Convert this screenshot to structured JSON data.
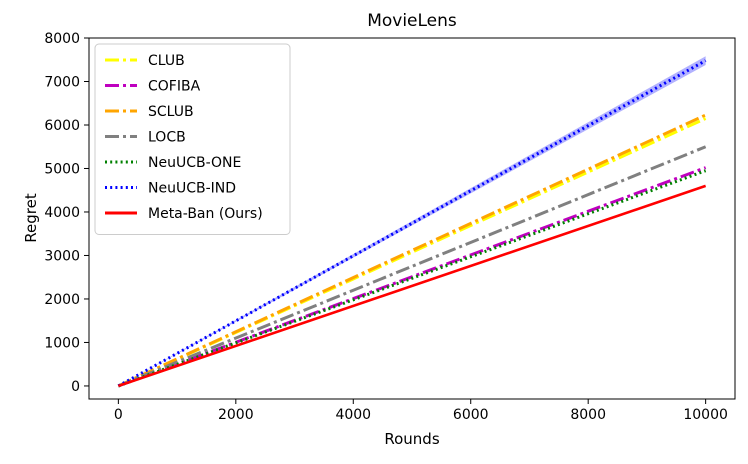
{
  "chart_data": {
    "type": "line",
    "title": "MovieLens",
    "xlabel": "Rounds",
    "ylabel": "Regret",
    "xlim": [
      -500,
      10500
    ],
    "ylim": [
      -300,
      8000
    ],
    "xticks": [
      0,
      2000,
      4000,
      6000,
      8000,
      10000
    ],
    "yticks": [
      0,
      1000,
      2000,
      3000,
      4000,
      5000,
      6000,
      7000,
      8000
    ],
    "x": [
      0,
      10000
    ],
    "grid": false,
    "legend_position": "top-left",
    "series": [
      {
        "name": "CLUB",
        "color": "#ffff00",
        "dash": "dashdot",
        "values": [
          0,
          6150
        ]
      },
      {
        "name": "COFIBA",
        "color": "#bf00bf",
        "dash": "dashdot",
        "values": [
          0,
          5020
        ]
      },
      {
        "name": "SCLUB",
        "color": "#ffa500",
        "dash": "dashdot",
        "values": [
          0,
          6230
        ]
      },
      {
        "name": "LOCB",
        "color": "#808080",
        "dash": "dashdot",
        "values": [
          0,
          5500
        ]
      },
      {
        "name": "NeuUCB-ONE",
        "color": "#008000",
        "dash": "dotted",
        "values": [
          0,
          4950
        ]
      },
      {
        "name": "NeuUCB-IND",
        "color": "#0000ff",
        "dash": "dotted",
        "values": [
          0,
          7480
        ],
        "band": [
          60,
          100
        ]
      },
      {
        "name": "Meta-Ban (Ours)",
        "color": "#ff0000",
        "dash": "solid",
        "values": [
          0,
          4600
        ]
      }
    ]
  }
}
